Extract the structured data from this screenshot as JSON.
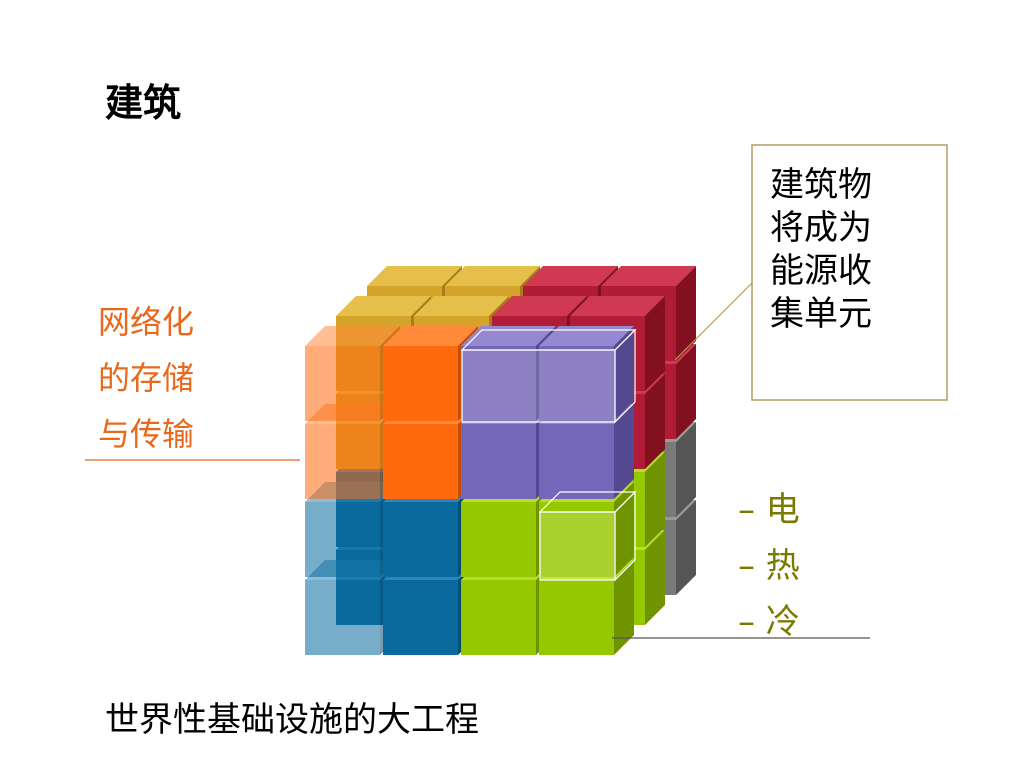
{
  "title": "建筑",
  "callout": {
    "lines": [
      "建筑物",
      "将成为",
      "能源收",
      "集单元"
    ]
  },
  "left_label": {
    "lines": [
      "网络化",
      "的存储",
      "与传输"
    ]
  },
  "right_label": {
    "lines": [
      "– 电",
      "– 热",
      "– 冷"
    ]
  },
  "footer": "世界性基础设施的大工程"
}
